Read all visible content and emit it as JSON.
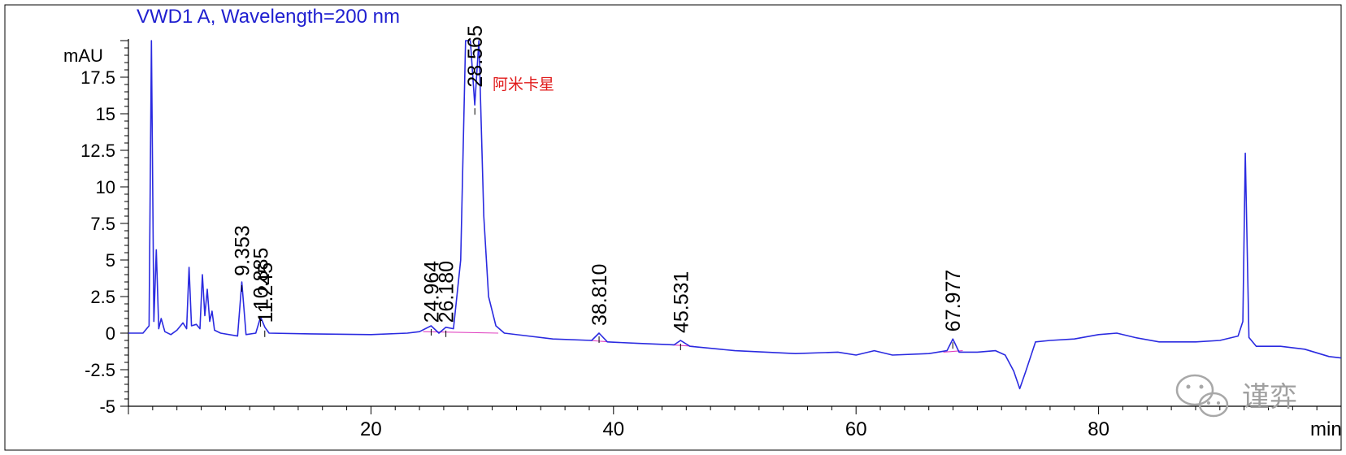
{
  "chart_data": {
    "type": "line",
    "title": "VWD1 A, Wavelength=200 nm",
    "ylabel": "mAU",
    "xlabel": "min",
    "xlim": [
      0,
      100
    ],
    "ylim": [
      -5,
      20
    ],
    "x_ticks": [
      "20",
      "40",
      "60",
      "80"
    ],
    "y_ticks": [
      "-5",
      "-2.5",
      "0",
      "2.5",
      "5",
      "7.5",
      "10",
      "12.5",
      "15",
      "17.5"
    ],
    "peak_labels": [
      "9.353",
      "10.885",
      "11.245",
      "24.964",
      "26.180",
      "28.565",
      "38.810",
      "45.531",
      "67.977"
    ],
    "annotation": "阿米卡星",
    "series": [
      {
        "values": [
          [
            0,
            0.0
          ],
          [
            1.2,
            0.0
          ],
          [
            1.7,
            0.5
          ],
          [
            1.9,
            20.0
          ],
          [
            2.1,
            0.8
          ],
          [
            2.3,
            5.7
          ],
          [
            2.5,
            0.3
          ],
          [
            2.7,
            1.0
          ],
          [
            3.0,
            0.1
          ],
          [
            3.5,
            -0.1
          ],
          [
            4.0,
            0.2
          ],
          [
            4.5,
            0.7
          ],
          [
            4.8,
            0.3
          ],
          [
            5.0,
            4.5
          ],
          [
            5.2,
            0.5
          ],
          [
            5.6,
            0.6
          ],
          [
            5.9,
            0.3
          ],
          [
            6.1,
            4.0
          ],
          [
            6.3,
            1.2
          ],
          [
            6.5,
            3.0
          ],
          [
            6.7,
            0.8
          ],
          [
            6.9,
            1.5
          ],
          [
            7.1,
            0.2
          ],
          [
            7.6,
            0.0
          ],
          [
            9.0,
            -0.2
          ],
          [
            9.35,
            3.5
          ],
          [
            9.7,
            -0.1
          ],
          [
            10.5,
            0.0
          ],
          [
            10.9,
            1.1
          ],
          [
            11.25,
            0.4
          ],
          [
            11.6,
            0.0
          ],
          [
            15,
            -0.05
          ],
          [
            20,
            -0.1
          ],
          [
            23,
            0.0
          ],
          [
            24.0,
            0.1
          ],
          [
            24.96,
            0.5
          ],
          [
            25.6,
            0.0
          ],
          [
            26.18,
            0.4
          ],
          [
            26.8,
            0.3
          ],
          [
            27.4,
            5.0
          ],
          [
            27.8,
            20.0
          ],
          [
            28.2,
            20.0
          ],
          [
            28.56,
            15.6
          ],
          [
            28.9,
            20.0
          ],
          [
            29.3,
            8.0
          ],
          [
            29.7,
            2.5
          ],
          [
            30.3,
            0.5
          ],
          [
            31,
            0.0
          ],
          [
            35,
            -0.4
          ],
          [
            38.2,
            -0.5
          ],
          [
            38.81,
            0.0
          ],
          [
            39.5,
            -0.6
          ],
          [
            42,
            -0.7
          ],
          [
            45.0,
            -0.8
          ],
          [
            45.53,
            -0.5
          ],
          [
            46.3,
            -0.9
          ],
          [
            50,
            -1.2
          ],
          [
            55,
            -1.4
          ],
          [
            58.5,
            -1.3
          ],
          [
            60,
            -1.5
          ],
          [
            61.5,
            -1.2
          ],
          [
            63,
            -1.5
          ],
          [
            66,
            -1.4
          ],
          [
            67.5,
            -1.2
          ],
          [
            67.98,
            -0.4
          ],
          [
            68.5,
            -1.3
          ],
          [
            70,
            -1.3
          ],
          [
            71.5,
            -1.2
          ],
          [
            72.3,
            -1.5
          ],
          [
            73.0,
            -2.6
          ],
          [
            73.5,
            -3.8
          ],
          [
            74.0,
            -2.6
          ],
          [
            74.8,
            -0.6
          ],
          [
            76,
            -0.5
          ],
          [
            78,
            -0.4
          ],
          [
            80,
            -0.1
          ],
          [
            81.5,
            0.0
          ],
          [
            83,
            -0.3
          ],
          [
            85,
            -0.6
          ],
          [
            88,
            -0.6
          ],
          [
            90,
            -0.5
          ],
          [
            91.5,
            -0.2
          ],
          [
            91.9,
            0.8
          ],
          [
            92.1,
            12.3
          ],
          [
            92.4,
            -0.3
          ],
          [
            93,
            -0.9
          ],
          [
            95,
            -0.9
          ],
          [
            97,
            -1.1
          ],
          [
            99,
            -1.6
          ],
          [
            100,
            -1.7
          ]
        ]
      }
    ],
    "baseline_segments": [
      [
        [
          24.3,
          0.1
        ],
        [
          30.5,
          0.0
        ]
      ],
      [
        [
          38.0,
          -0.5
        ],
        [
          39.7,
          -0.6
        ]
      ],
      [
        [
          44.8,
          -0.8
        ],
        [
          46.6,
          -0.9
        ]
      ],
      [
        [
          67.2,
          -1.3
        ],
        [
          68.8,
          -1.2
        ]
      ]
    ],
    "colors": {
      "trace": "#2a2ae0",
      "baseline": "#e040c0",
      "title": "#1f1fd0",
      "annotation": "#e01a1a"
    }
  },
  "watermark": {
    "text": "谨弈",
    "icon": "wechat-icon"
  }
}
